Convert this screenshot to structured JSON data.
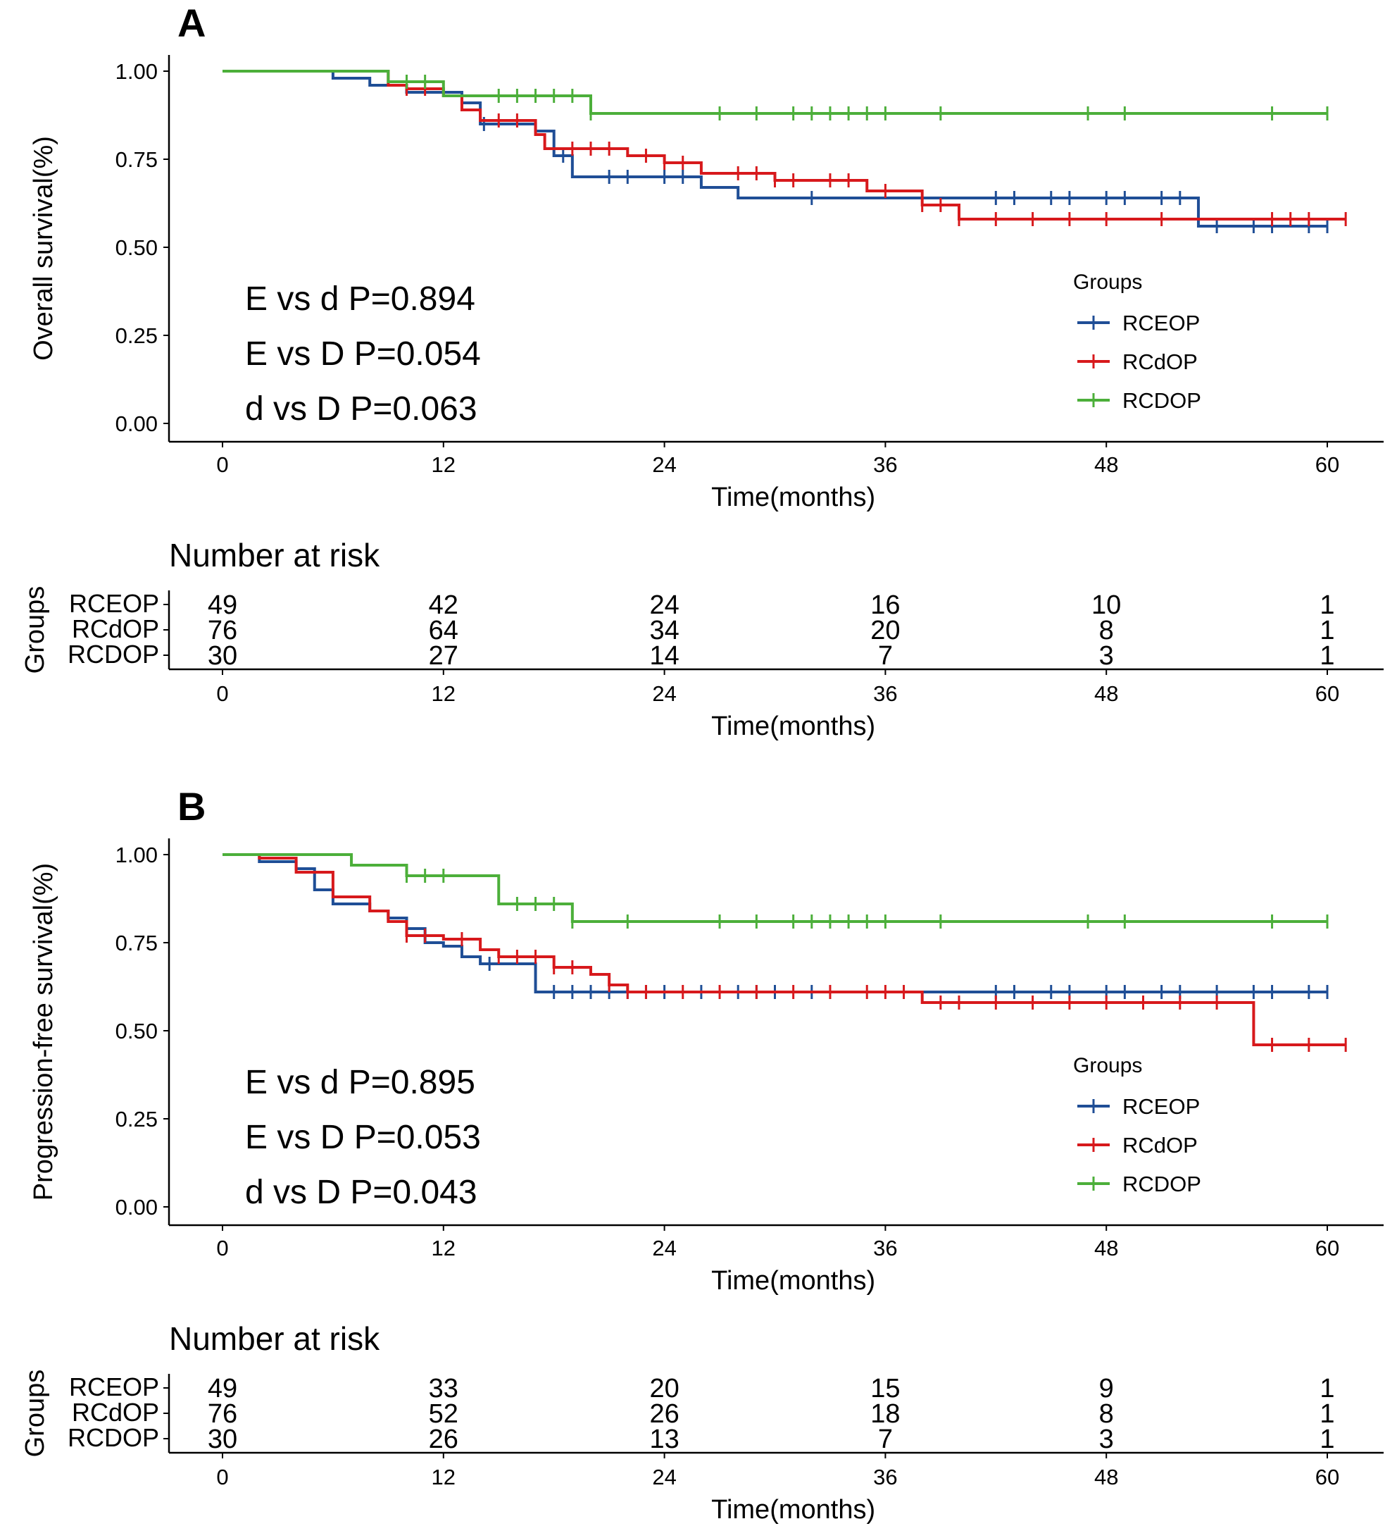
{
  "colors": {
    "RCEOP": "#1f4e96",
    "RCdOP": "#d7191c",
    "RCDOP": "#4caf3a",
    "axis": "#000000"
  },
  "chart_data": [
    {
      "panel_label": "A",
      "type": "line",
      "subtype": "kaplan-meier",
      "title": "",
      "xlabel": "Time(months)",
      "ylabel": "Overall survival(%)",
      "xlim": [
        0,
        61
      ],
      "ylim": [
        0,
        1
      ],
      "xticks": [
        "0",
        "12",
        "24",
        "36",
        "48",
        "60"
      ],
      "yticks": [
        "0.00",
        "0.25",
        "0.50",
        "0.75",
        "1.00"
      ],
      "grid": false,
      "legend": {
        "title": "Groups",
        "position": "right",
        "entries": [
          "RCEOP",
          "RCdOP",
          "RCDOP"
        ]
      },
      "annotations": [
        "E vs d P=0.894",
        "E vs D P=0.054",
        "d vs D P=0.063"
      ],
      "series": [
        {
          "name": "RCEOP",
          "steps": [
            [
              0,
              1.0
            ],
            [
              6,
              0.98
            ],
            [
              8,
              0.96
            ],
            [
              10,
              0.94
            ],
            [
              13,
              0.91
            ],
            [
              14,
              0.85
            ],
            [
              17,
              0.83
            ],
            [
              18,
              0.76
            ],
            [
              19,
              0.7
            ],
            [
              26,
              0.67
            ],
            [
              28,
              0.64
            ],
            [
              53,
              0.56
            ],
            [
              60,
              0.56
            ]
          ],
          "censor": [
            14.2,
            18.5,
            21,
            22,
            24,
            25,
            32,
            42,
            43,
            45,
            46,
            48,
            49,
            51,
            52,
            54,
            56,
            57,
            59,
            60
          ]
        },
        {
          "name": "RCdOP",
          "steps": [
            [
              0,
              1.0
            ],
            [
              9,
              0.96
            ],
            [
              10,
              0.95
            ],
            [
              12,
              0.93
            ],
            [
              13,
              0.89
            ],
            [
              14,
              0.86
            ],
            [
              17,
              0.82
            ],
            [
              17.5,
              0.78
            ],
            [
              22,
              0.76
            ],
            [
              24,
              0.74
            ],
            [
              26,
              0.71
            ],
            [
              30,
              0.69
            ],
            [
              35,
              0.66
            ],
            [
              38,
              0.62
            ],
            [
              40,
              0.58
            ],
            [
              61,
              0.58
            ]
          ],
          "censor": [
            10,
            11,
            15,
            16,
            19,
            20,
            21,
            23,
            24,
            25,
            28,
            29,
            30,
            31,
            33,
            34,
            36,
            38,
            39,
            40,
            42,
            44,
            46,
            48,
            51,
            57,
            58,
            59,
            61
          ]
        },
        {
          "name": "RCDOP",
          "steps": [
            [
              0,
              1.0
            ],
            [
              9,
              0.97
            ],
            [
              12,
              0.93
            ],
            [
              20,
              0.88
            ],
            [
              60,
              0.88
            ]
          ],
          "censor": [
            10,
            11,
            15,
            16,
            17,
            18,
            19,
            20,
            27,
            29,
            31,
            32,
            33,
            34,
            35,
            36,
            39,
            47,
            49,
            57,
            60
          ]
        }
      ],
      "risk_table": {
        "title": "Number at risk",
        "ylabel": "Groups",
        "xlabel": "Time(months)",
        "times": [
          "0",
          "12",
          "24",
          "36",
          "48",
          "60"
        ],
        "rows": [
          {
            "group": "RCEOP",
            "counts": [
              "49",
              "42",
              "24",
              "16",
              "10",
              "1"
            ]
          },
          {
            "group": "RCdOP",
            "counts": [
              "76",
              "64",
              "34",
              "20",
              "8",
              "1"
            ]
          },
          {
            "group": "RCDOP",
            "counts": [
              "30",
              "27",
              "14",
              "7",
              "3",
              "1"
            ]
          }
        ]
      }
    },
    {
      "panel_label": "B",
      "type": "line",
      "subtype": "kaplan-meier",
      "title": "",
      "xlabel": "Time(months)",
      "ylabel": "Progression-free survival(%)",
      "xlim": [
        0,
        61
      ],
      "ylim": [
        0,
        1
      ],
      "xticks": [
        "0",
        "12",
        "24",
        "36",
        "48",
        "60"
      ],
      "yticks": [
        "0.00",
        "0.25",
        "0.50",
        "0.75",
        "1.00"
      ],
      "grid": false,
      "legend": {
        "title": "Groups",
        "position": "right",
        "entries": [
          "RCEOP",
          "RCdOP",
          "RCDOP"
        ]
      },
      "annotations": [
        "E vs d P=0.895",
        "E vs D P=0.053",
        "d vs D P=0.043"
      ],
      "series": [
        {
          "name": "RCEOP",
          "steps": [
            [
              0,
              1.0
            ],
            [
              2,
              0.98
            ],
            [
              4,
              0.96
            ],
            [
              5,
              0.9
            ],
            [
              6,
              0.86
            ],
            [
              8,
              0.84
            ],
            [
              9,
              0.82
            ],
            [
              10,
              0.79
            ],
            [
              11,
              0.75
            ],
            [
              12,
              0.74
            ],
            [
              13,
              0.71
            ],
            [
              14,
              0.69
            ],
            [
              17,
              0.61
            ],
            [
              60,
              0.61
            ]
          ],
          "censor": [
            14.5,
            18,
            19,
            20,
            21,
            22,
            23,
            24,
            26,
            28,
            29,
            30,
            32,
            42,
            43,
            45,
            46,
            48,
            49,
            51,
            52,
            54,
            56,
            57,
            59,
            60
          ]
        },
        {
          "name": "RCdOP",
          "steps": [
            [
              0,
              1.0
            ],
            [
              2,
              0.99
            ],
            [
              4,
              0.95
            ],
            [
              6,
              0.88
            ],
            [
              8,
              0.84
            ],
            [
              9,
              0.81
            ],
            [
              10,
              0.77
            ],
            [
              12,
              0.76
            ],
            [
              14,
              0.73
            ],
            [
              15,
              0.71
            ],
            [
              18,
              0.68
            ],
            [
              20,
              0.66
            ],
            [
              21,
              0.63
            ],
            [
              22,
              0.61
            ],
            [
              38,
              0.58
            ],
            [
              56,
              0.46
            ],
            [
              61,
              0.46
            ]
          ],
          "censor": [
            10,
            11,
            13,
            15,
            16,
            17,
            18,
            19,
            21,
            22,
            23,
            25,
            27,
            29,
            31,
            33,
            35,
            36,
            37,
            39,
            40,
            42,
            44,
            46,
            48,
            50,
            52,
            54,
            57,
            59,
            61
          ]
        },
        {
          "name": "RCDOP",
          "steps": [
            [
              0,
              1.0
            ],
            [
              7,
              0.97
            ],
            [
              10,
              0.94
            ],
            [
              15,
              0.86
            ],
            [
              19,
              0.81
            ],
            [
              60,
              0.81
            ]
          ],
          "censor": [
            10,
            11,
            12,
            16,
            17,
            18,
            19,
            22,
            27,
            29,
            31,
            32,
            33,
            34,
            35,
            36,
            39,
            47,
            49,
            57,
            60
          ]
        }
      ],
      "risk_table": {
        "title": "Number at risk",
        "ylabel": "Groups",
        "xlabel": "Time(months)",
        "times": [
          "0",
          "12",
          "24",
          "36",
          "48",
          "60"
        ],
        "rows": [
          {
            "group": "RCEOP",
            "counts": [
              "49",
              "33",
              "20",
              "15",
              "9",
              "1"
            ]
          },
          {
            "group": "RCdOP",
            "counts": [
              "76",
              "52",
              "26",
              "18",
              "8",
              "1"
            ]
          },
          {
            "group": "RCDOP",
            "counts": [
              "30",
              "26",
              "13",
              "7",
              "3",
              "1"
            ]
          }
        ]
      }
    }
  ]
}
